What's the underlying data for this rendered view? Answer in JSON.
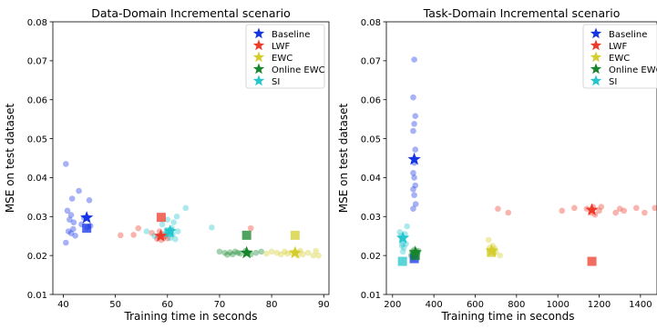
{
  "chart_data": [
    {
      "type": "scatter",
      "title": "Data-Domain Incremental scenario",
      "xlabel": "Training time in seconds",
      "ylabel": "MSE on test dataset",
      "xlim": [
        38,
        91
      ],
      "ylim": [
        0.01,
        0.08
      ],
      "xticks": [
        "40",
        "50",
        "60",
        "70",
        "80",
        "90"
      ],
      "yticks": [
        "0.01",
        "0.02",
        "0.03",
        "0.04",
        "0.05",
        "0.06",
        "0.07",
        "0.08"
      ],
      "grid": false,
      "legend_position": "top-right",
      "series": [
        {
          "name": "Baseline",
          "color": "#1434e6",
          "runs": [
            [
              40.5,
              0.0435
            ],
            [
              40.5,
              0.0233
            ],
            [
              40.8,
              0.0315
            ],
            [
              41.0,
              0.0262
            ],
            [
              41.2,
              0.0292
            ],
            [
              41.5,
              0.0304
            ],
            [
              41.5,
              0.0257
            ],
            [
              41.7,
              0.0346
            ],
            [
              41.9,
              0.0268
            ],
            [
              42.0,
              0.0285
            ],
            [
              42.3,
              0.0251
            ],
            [
              43.0,
              0.0366
            ],
            [
              43.5,
              0.028
            ],
            [
              44.0,
              0.0297
            ],
            [
              44.6,
              0.0272
            ],
            [
              45.0,
              0.0342
            ],
            [
              45.2,
              0.0276
            ]
          ],
          "mean": [
            44.5,
            0.0297
          ],
          "last": [
            44.5,
            0.027
          ]
        },
        {
          "name": "LWF",
          "color": "#ee3a2a",
          "runs": [
            [
              51.0,
              0.0252
            ],
            [
              53.5,
              0.0253
            ],
            [
              54.4,
              0.027
            ],
            [
              57.0,
              0.0258
            ],
            [
              58.0,
              0.0243
            ],
            [
              58.2,
              0.025
            ],
            [
              58.5,
              0.0262
            ],
            [
              58.8,
              0.024
            ],
            [
              59.0,
              0.0255
            ],
            [
              59.2,
              0.0246
            ],
            [
              59.6,
              0.025
            ],
            [
              60.0,
              0.0244
            ],
            [
              76.0,
              0.027
            ]
          ],
          "mean": [
            58.7,
            0.025
          ],
          "last": [
            58.8,
            0.0298
          ]
        },
        {
          "name": "EWC",
          "color": "#d4cd2d",
          "runs": [
            [
              79.0,
              0.0205
            ],
            [
              80.0,
              0.021
            ],
            [
              81.0,
              0.0207
            ],
            [
              81.8,
              0.0203
            ],
            [
              82.5,
              0.021
            ],
            [
              83.0,
              0.0205
            ],
            [
              83.8,
              0.0207
            ],
            [
              84.5,
              0.021
            ],
            [
              85.0,
              0.02
            ],
            [
              85.5,
              0.0212
            ],
            [
              86.0,
              0.0203
            ],
            [
              87.0,
              0.0207
            ],
            [
              88.0,
              0.02
            ],
            [
              88.5,
              0.0212
            ],
            [
              89.0,
              0.02
            ]
          ],
          "mean": [
            84.5,
            0.0207
          ],
          "last": [
            84.5,
            0.0252
          ]
        },
        {
          "name": "Online EWC",
          "color": "#16852b",
          "runs": [
            [
              70.0,
              0.021
            ],
            [
              71.0,
              0.0207
            ],
            [
              71.5,
              0.0202
            ],
            [
              72.0,
              0.0208
            ],
            [
              72.5,
              0.0203
            ],
            [
              73.0,
              0.021
            ],
            [
              73.5,
              0.0207
            ],
            [
              74.0,
              0.0205
            ],
            [
              75.0,
              0.0212
            ],
            [
              75.5,
              0.0207
            ],
            [
              76.0,
              0.0203
            ],
            [
              77.0,
              0.0207
            ],
            [
              78.0,
              0.021
            ]
          ],
          "mean": [
            75.2,
            0.0207
          ],
          "last": [
            75.2,
            0.0252
          ]
        },
        {
          "name": "SI",
          "color": "#22c6cc",
          "runs": [
            [
              56.0,
              0.0262
            ],
            [
              57.5,
              0.025
            ],
            [
              59.0,
              0.028
            ],
            [
              59.5,
              0.0255
            ],
            [
              60.0,
              0.0292
            ],
            [
              60.2,
              0.0262
            ],
            [
              60.5,
              0.0245
            ],
            [
              60.8,
              0.027
            ],
            [
              61.0,
              0.0254
            ],
            [
              61.2,
              0.0285
            ],
            [
              61.5,
              0.0242
            ],
            [
              61.8,
              0.03
            ],
            [
              62.0,
              0.0262
            ],
            [
              63.5,
              0.0322
            ],
            [
              68.5,
              0.0272
            ]
          ],
          "mean": [
            60.5,
            0.0262
          ],
          "last": [
            60.3,
            0.026
          ]
        }
      ]
    },
    {
      "type": "scatter",
      "title": "Task-Domain Incremental scenario",
      "xlabel": "Training time in seconds",
      "ylabel": "MSE on test dataset",
      "xlim": [
        170,
        1480
      ],
      "ylim": [
        0.01,
        0.08
      ],
      "xticks": [
        "200",
        "400",
        "600",
        "800",
        "1000",
        "1200",
        "1400"
      ],
      "yticks": [
        "0.01",
        "0.02",
        "0.03",
        "0.04",
        "0.05",
        "0.06",
        "0.07",
        "0.08"
      ],
      "grid": false,
      "legend_position": "top-right",
      "series": [
        {
          "name": "Baseline",
          "color": "#1434e6",
          "runs": [
            [
              305,
              0.0703
            ],
            [
              300,
              0.0606
            ],
            [
              310,
              0.0558
            ],
            [
              305,
              0.0538
            ],
            [
              300,
              0.052
            ],
            [
              310,
              0.0472
            ],
            [
              305,
              0.0438
            ],
            [
              300,
              0.0412
            ],
            [
              305,
              0.04
            ],
            [
              310,
              0.038
            ],
            [
              300,
              0.037
            ],
            [
              305,
              0.0355
            ],
            [
              312,
              0.0332
            ],
            [
              300,
              0.032
            ],
            [
              305,
              0.02
            ]
          ],
          "mean": [
            305,
            0.0447
          ],
          "last": [
            305,
            0.0192
          ]
        },
        {
          "name": "LWF",
          "color": "#ee3a2a",
          "runs": [
            [
              710,
              0.032
            ],
            [
              760,
              0.031
            ],
            [
              1020,
              0.0315
            ],
            [
              1080,
              0.0322
            ],
            [
              1140,
              0.032
            ],
            [
              1160,
              0.031
            ],
            [
              1170,
              0.0325
            ],
            [
              1180,
              0.0305
            ],
            [
              1200,
              0.0315
            ],
            [
              1210,
              0.0325
            ],
            [
              1280,
              0.031
            ],
            [
              1300,
              0.032
            ],
            [
              1320,
              0.0315
            ],
            [
              1380,
              0.0322
            ],
            [
              1420,
              0.031
            ],
            [
              1470,
              0.0322
            ]
          ],
          "mean": [
            1165,
            0.0317
          ],
          "last": [
            1165,
            0.0185
          ]
        },
        {
          "name": "EWC",
          "color": "#d4cd2d",
          "runs": [
            [
              665,
              0.024
            ],
            [
              670,
              0.022
            ],
            [
              675,
              0.021
            ],
            [
              680,
              0.0215
            ],
            [
              685,
              0.0225
            ],
            [
              690,
              0.0205
            ],
            [
              695,
              0.0218
            ],
            [
              700,
              0.021
            ],
            [
              720,
              0.02
            ]
          ],
          "mean": [
            680,
            0.0212
          ],
          "last": [
            678,
            0.0208
          ]
        },
        {
          "name": "Online EWC",
          "color": "#16852b",
          "runs": [
            [
              290,
              0.02
            ],
            [
              295,
              0.021
            ],
            [
              300,
              0.0205
            ],
            [
              305,
              0.0215
            ],
            [
              310,
              0.02
            ],
            [
              315,
              0.021
            ],
            [
              320,
              0.0205
            ],
            [
              325,
              0.0212
            ],
            [
              300,
              0.0195
            ]
          ],
          "mean": [
            310,
            0.0208
          ],
          "last": [
            310,
            0.02
          ]
        },
        {
          "name": "SI",
          "color": "#22c6cc",
          "runs": [
            [
              235,
              0.026
            ],
            [
              240,
              0.025
            ],
            [
              245,
              0.024
            ],
            [
              250,
              0.023
            ],
            [
              255,
              0.022
            ],
            [
              260,
              0.0255
            ],
            [
              265,
              0.023
            ],
            [
              270,
              0.0275
            ],
            [
              250,
              0.021
            ],
            [
              245,
              0.0225
            ]
          ],
          "mean": [
            250,
            0.0245
          ],
          "last": [
            248,
            0.0185
          ]
        }
      ]
    }
  ]
}
